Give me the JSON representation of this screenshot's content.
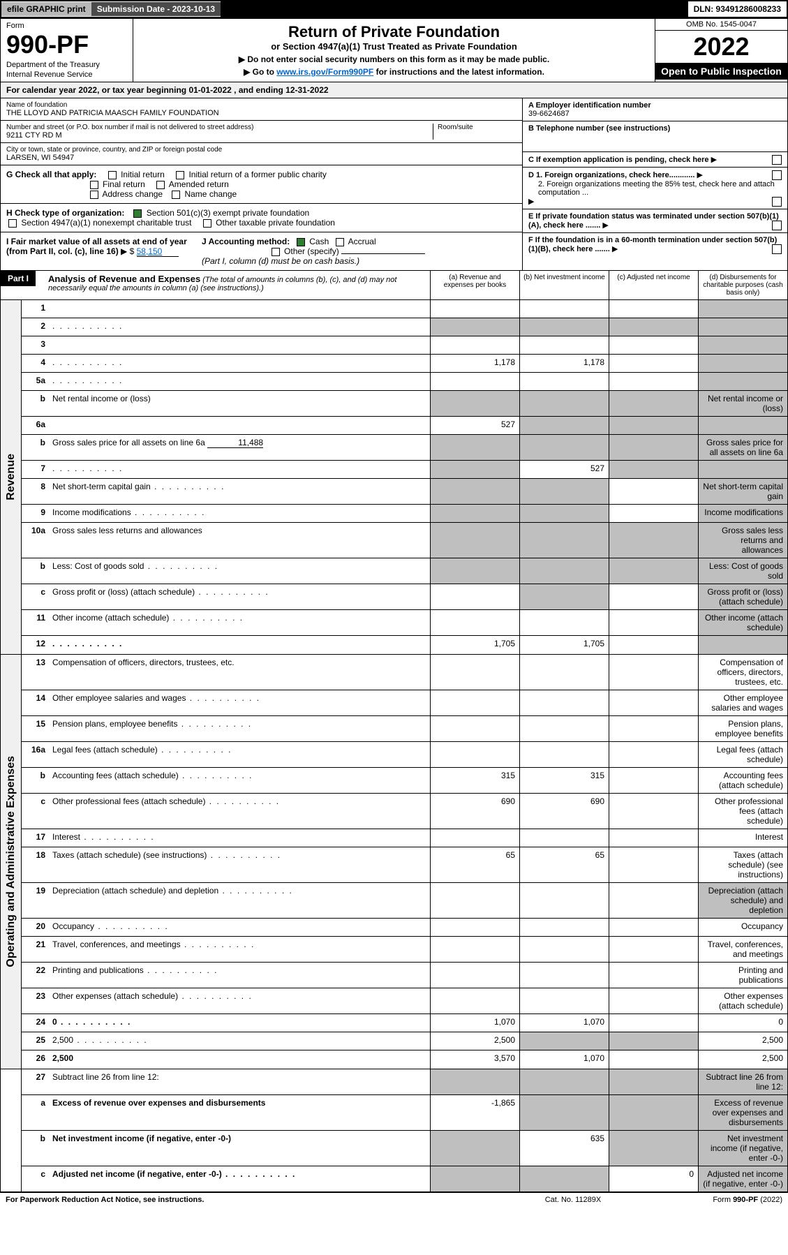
{
  "top": {
    "efile": "efile GRAPHIC print",
    "submission": "Submission Date - 2023-10-13",
    "dln": "DLN: 93491286008233"
  },
  "header": {
    "form_label": "Form",
    "form_number": "990-PF",
    "dept": "Department of the Treasury",
    "irs": "Internal Revenue Service",
    "title": "Return of Private Foundation",
    "subtitle": "or Section 4947(a)(1) Trust Treated as Private Foundation",
    "instr1": "▶ Do not enter social security numbers on this form as it may be made public.",
    "instr2_pre": "▶ Go to ",
    "instr2_link": "www.irs.gov/Form990PF",
    "instr2_post": " for instructions and the latest information.",
    "omb": "OMB No. 1545-0047",
    "year": "2022",
    "open": "Open to Public Inspection"
  },
  "cal_year": "For calendar year 2022, or tax year beginning 01-01-2022                      , and ending 12-31-2022",
  "identity": {
    "name_lbl": "Name of foundation",
    "name": "THE LLOYD AND PATRICIA MAASCH FAMILY FOUNDATION",
    "addr_lbl": "Number and street (or P.O. box number if mail is not delivered to street address)",
    "addr": "9211 CTY RD M",
    "room_lbl": "Room/suite",
    "city_lbl": "City or town, state or province, country, and ZIP or foreign postal code",
    "city": "LARSEN, WI  54947",
    "ein_lbl": "A Employer identification number",
    "ein": "39-6624687",
    "phone_lbl": "B Telephone number (see instructions)",
    "c_lbl": "C If exemption application is pending, check here",
    "d1_lbl": "D 1. Foreign organizations, check here............",
    "d2_lbl": "2. Foreign organizations meeting the 85% test, check here and attach computation ...",
    "e_lbl": "E  If private foundation status was terminated under section 507(b)(1)(A), check here .......",
    "f_lbl": "F  If the foundation is in a 60-month termination under section 507(b)(1)(B), check here .......",
    "g_lbl": "G Check all that apply:",
    "g_opts": [
      "Initial return",
      "Initial return of a former public charity",
      "Final return",
      "Amended return",
      "Address change",
      "Name change"
    ],
    "h_lbl": "H Check type of organization:",
    "h1": "Section 501(c)(3) exempt private foundation",
    "h2": "Section 4947(a)(1) nonexempt charitable trust",
    "h3": "Other taxable private foundation",
    "i_lbl": "I Fair market value of all assets at end of year (from Part II, col. (c), line 16)",
    "i_val": "58,150",
    "j_lbl": "J Accounting method:",
    "j_cash": "Cash",
    "j_accrual": "Accrual",
    "j_other": "Other (specify)",
    "j_note": "(Part I, column (d) must be on cash basis.)"
  },
  "part1": {
    "label": "Part I",
    "title": "Analysis of Revenue and Expenses",
    "note": " (The total of amounts in columns (b), (c), and (d) may not necessarily equal the amounts in column (a) (see instructions).)",
    "col_a": "(a)   Revenue and expenses per books",
    "col_b": "(b)   Net investment income",
    "col_c": "(c)   Adjusted net income",
    "col_d": "(d)   Disbursements for charitable purposes (cash basis only)"
  },
  "sections": {
    "revenue": "Revenue",
    "expenses": "Operating and Administrative Expenses"
  },
  "rows": [
    {
      "n": "1",
      "d": "",
      "a": "",
      "b": "",
      "c": "",
      "shade_d": true
    },
    {
      "n": "2",
      "d": "",
      "dots": true,
      "a": "",
      "b": "",
      "c": "",
      "shade_abcd": true
    },
    {
      "n": "3",
      "d": "",
      "a": "",
      "b": "",
      "c": "",
      "shade_d": true
    },
    {
      "n": "4",
      "d": "",
      "dots": true,
      "a": "1,178",
      "b": "1,178",
      "c": "",
      "shade_d": true
    },
    {
      "n": "5a",
      "d": "",
      "dots": true,
      "a": "",
      "b": "",
      "c": "",
      "shade_d": true
    },
    {
      "n": "b",
      "d": "Net rental income or (loss)",
      "under": true,
      "shade_abcd": true
    },
    {
      "n": "6a",
      "d": "",
      "a": "527",
      "b": "",
      "c": "",
      "shade_bcd": true
    },
    {
      "n": "b",
      "d": "Gross sales price for all assets on line 6a",
      "val_inline": "11,488",
      "shade_abcd": true
    },
    {
      "n": "7",
      "d": "",
      "dots": true,
      "a": "",
      "b": "527",
      "c": "",
      "shade_a": true,
      "shade_cd": true
    },
    {
      "n": "8",
      "d": "Net short-term capital gain",
      "dots": true,
      "shade_ab": true,
      "shade_d": true
    },
    {
      "n": "9",
      "d": "Income modifications",
      "dots": true,
      "shade_ab": true,
      "shade_d": true
    },
    {
      "n": "10a",
      "d": "Gross sales less returns and allowances",
      "under": true,
      "shade_abcd": true
    },
    {
      "n": "b",
      "d": "Less: Cost of goods sold",
      "dots": true,
      "under": true,
      "shade_abcd": true
    },
    {
      "n": "c",
      "d": "Gross profit or (loss) (attach schedule)",
      "dots": true,
      "shade_b": true,
      "shade_d": true
    },
    {
      "n": "11",
      "d": "Other income (attach schedule)",
      "dots": true,
      "shade_d": true
    },
    {
      "n": "12",
      "d": "",
      "bold": true,
      "dots": true,
      "a": "1,705",
      "b": "1,705",
      "c": "",
      "shade_d": true
    }
  ],
  "exp_rows": [
    {
      "n": "13",
      "d": "Compensation of officers, directors, trustees, etc."
    },
    {
      "n": "14",
      "d": "Other employee salaries and wages",
      "dots": true
    },
    {
      "n": "15",
      "d": "Pension plans, employee benefits",
      "dots": true
    },
    {
      "n": "16a",
      "d": "Legal fees (attach schedule)",
      "dots": true
    },
    {
      "n": "b",
      "d": "Accounting fees (attach schedule)",
      "dots": true,
      "a": "315",
      "b": "315"
    },
    {
      "n": "c",
      "d": "Other professional fees (attach schedule)",
      "dots": true,
      "a": "690",
      "b": "690"
    },
    {
      "n": "17",
      "d": "Interest",
      "dots": true
    },
    {
      "n": "18",
      "d": "Taxes (attach schedule) (see instructions)",
      "dots": true,
      "a": "65",
      "b": "65"
    },
    {
      "n": "19",
      "d": "Depreciation (attach schedule) and depletion",
      "dots": true,
      "shade_d": true
    },
    {
      "n": "20",
      "d": "Occupancy",
      "dots": true
    },
    {
      "n": "21",
      "d": "Travel, conferences, and meetings",
      "dots": true
    },
    {
      "n": "22",
      "d": "Printing and publications",
      "dots": true
    },
    {
      "n": "23",
      "d": "Other expenses (attach schedule)",
      "dots": true
    },
    {
      "n": "24",
      "d": "0",
      "bold": true,
      "dots": true,
      "a": "1,070",
      "b": "1,070",
      "c": ""
    },
    {
      "n": "25",
      "d": "2,500",
      "dots": true,
      "a": "2,500",
      "shade_bc": true
    },
    {
      "n": "26",
      "d": "2,500",
      "bold": true,
      "a": "3,570",
      "b": "1,070",
      "c": ""
    }
  ],
  "bottom_rows": [
    {
      "n": "27",
      "d": "Subtract line 26 from line 12:",
      "shade_abcd": true
    },
    {
      "n": "a",
      "d": "Excess of revenue over expenses and disbursements",
      "bold": true,
      "a": "-1,865",
      "shade_bcd": true
    },
    {
      "n": "b",
      "d": "Net investment income (if negative, enter -0-)",
      "bold": true,
      "shade_a": true,
      "b": "635",
      "shade_cd": true
    },
    {
      "n": "c",
      "d": "Adjusted net income (if negative, enter -0-)",
      "bold": true,
      "dots": true,
      "shade_ab": true,
      "c": "0",
      "shade_d": true
    }
  ],
  "footer": {
    "left": "For Paperwork Reduction Act Notice, see instructions.",
    "mid": "Cat. No. 11289X",
    "right": "Form 990-PF (2022)"
  }
}
